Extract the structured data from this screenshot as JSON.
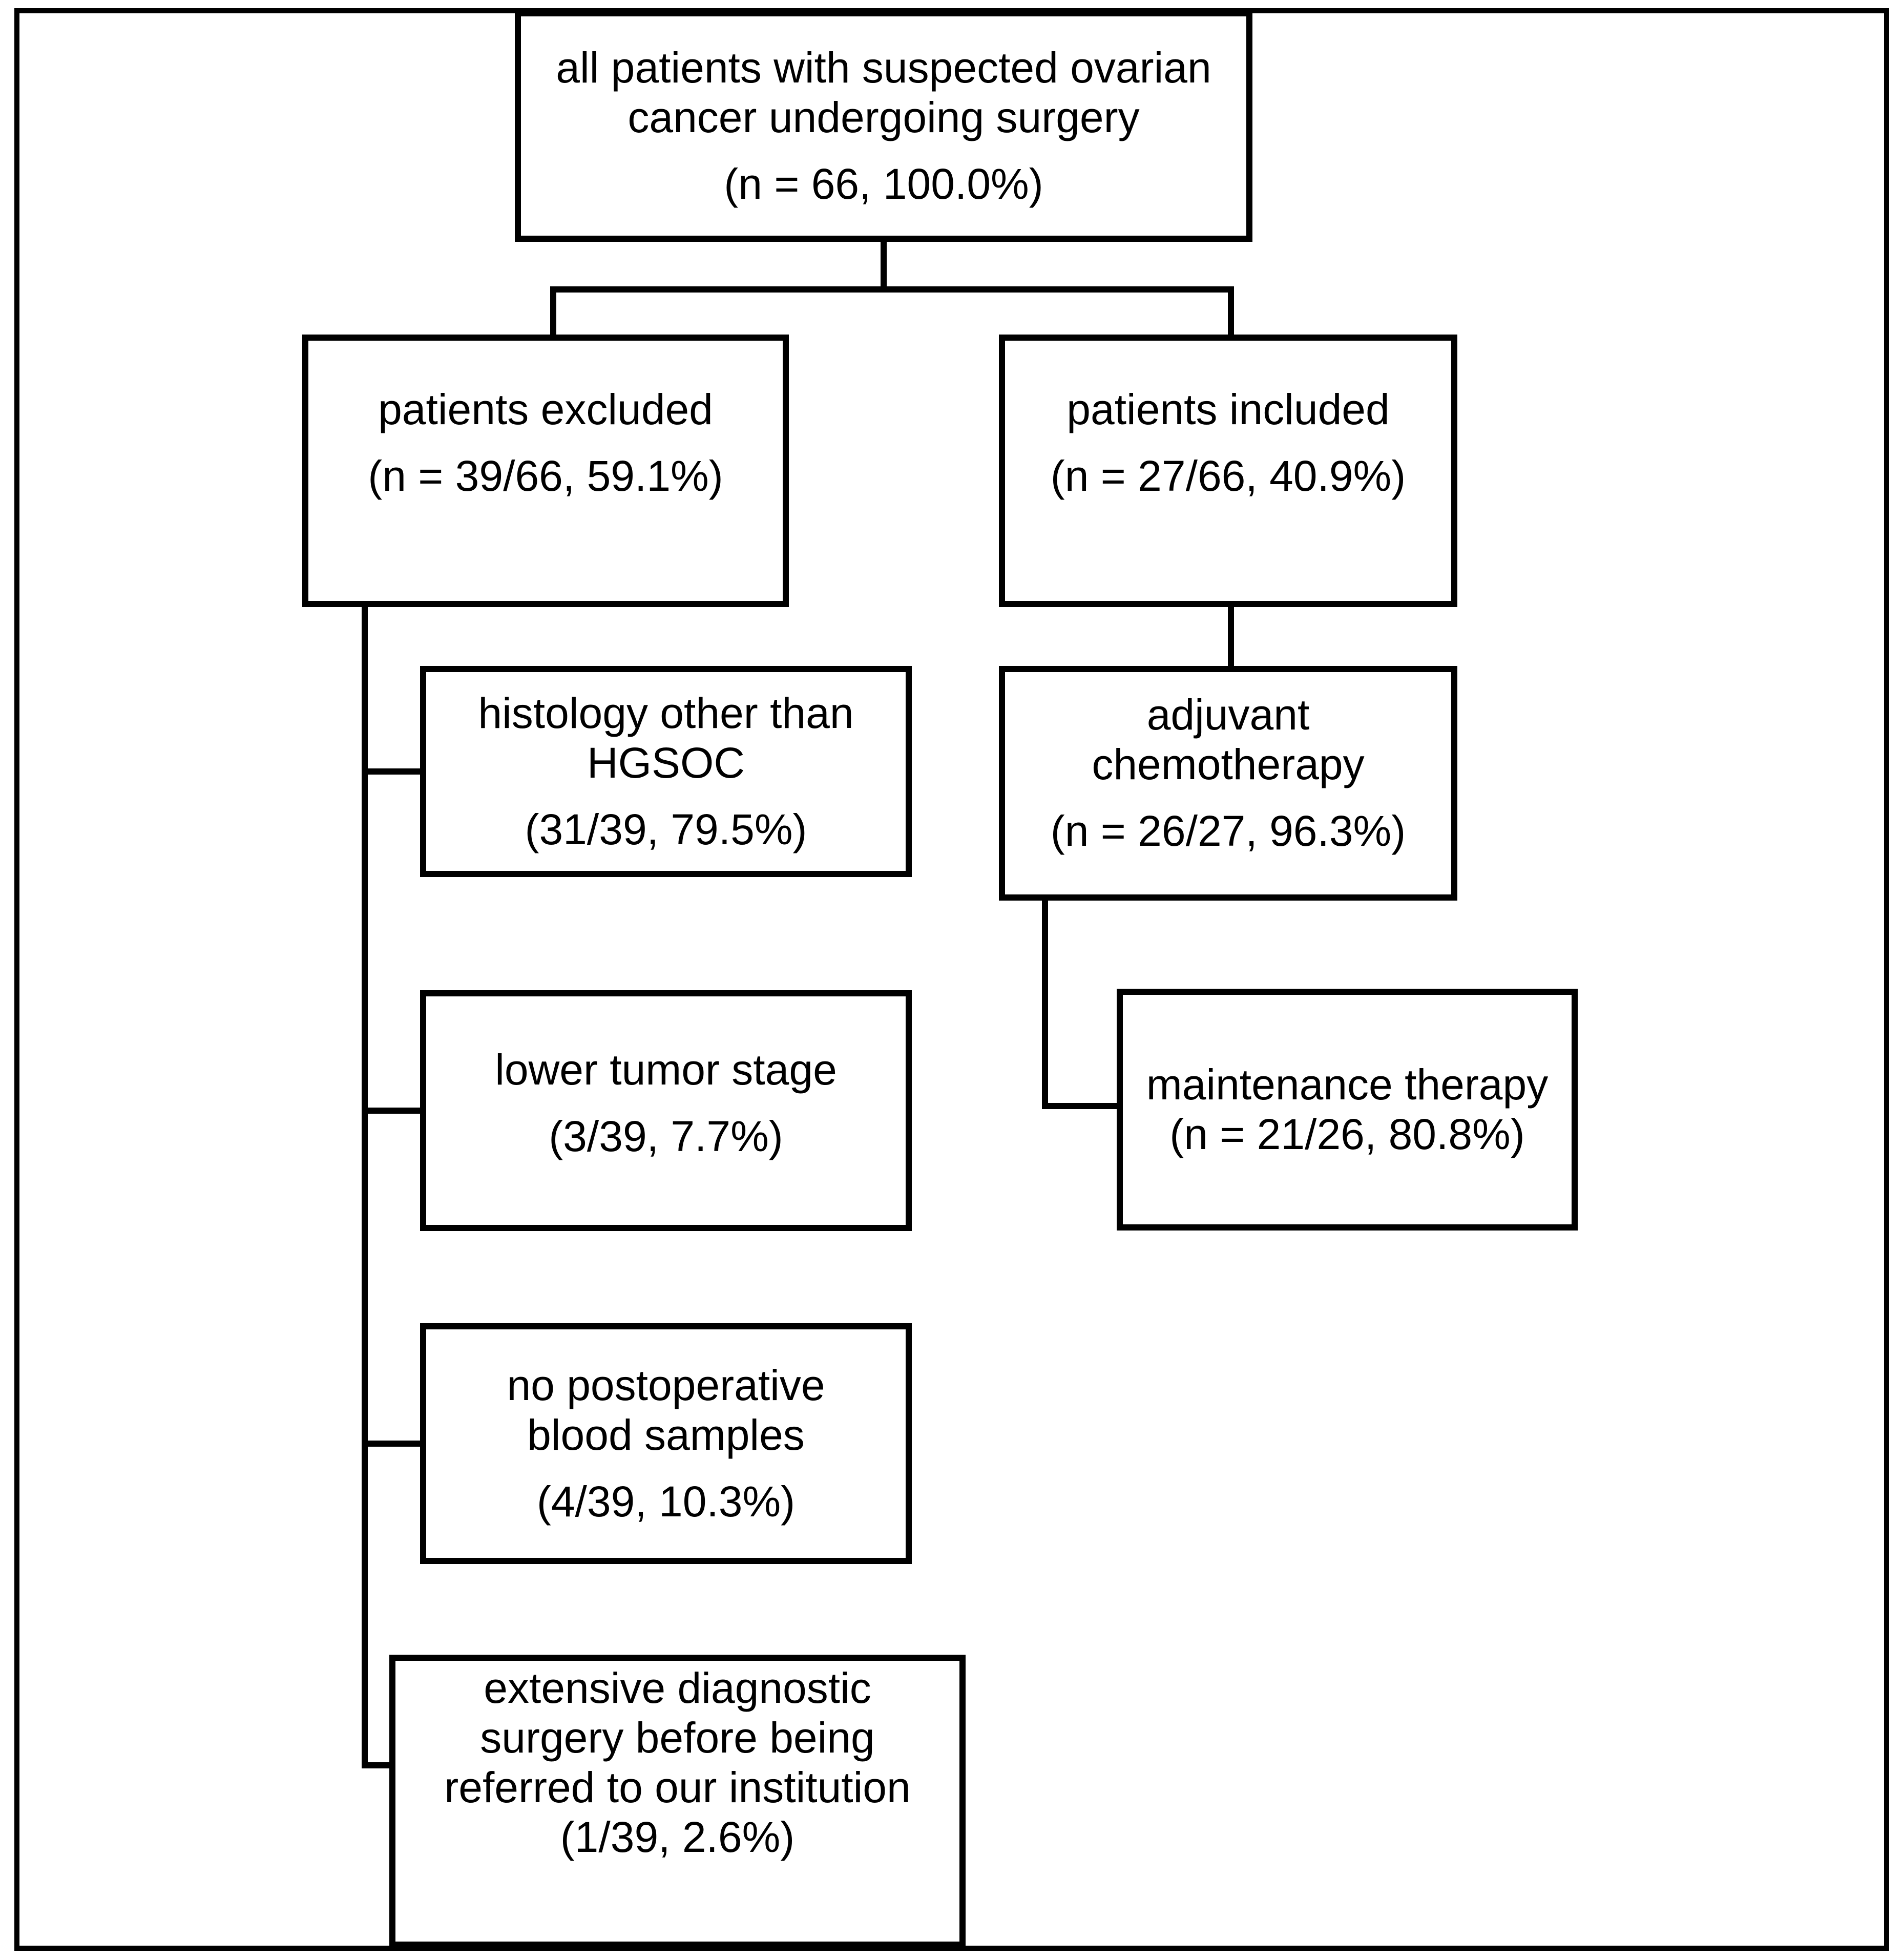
{
  "figure": {
    "kind": "patient-flow-diagram",
    "background_color": "#ffffff",
    "line_color": "#000000",
    "text_color": "#000000"
  },
  "nodes": {
    "root": {
      "lines": [
        "all patients with suspected ovarian",
        "cancer undergoing surgery"
      ],
      "count": "(n = 66, 100.0%)"
    },
    "excluded": {
      "lines": [
        "patients excluded"
      ],
      "count": "(n = 39/66, 59.1%)"
    },
    "included": {
      "lines": [
        "patients included"
      ],
      "count": "(n = 27/66, 40.9%)"
    },
    "histology": {
      "lines": [
        "histology other than",
        "HGSOC"
      ],
      "count": "(31/39, 79.5%)"
    },
    "lower_stage": {
      "lines": [
        "lower tumor stage"
      ],
      "count": "(3/39, 7.7%)"
    },
    "no_postop_blood": {
      "lines": [
        "no postoperative",
        "blood samples"
      ],
      "count": "(4/39, 10.3%)"
    },
    "extensive_surgery": {
      "lines": [
        "extensive diagnostic",
        "surgery before being",
        "referred to our institution"
      ],
      "count": "(1/39, 2.6%)"
    },
    "adjuvant": {
      "lines": [
        "adjuvant",
        "chemotherapy"
      ],
      "count": "(n = 26/27, 96.3%)"
    },
    "maintenance": {
      "lines": [
        "maintenance therapy"
      ],
      "count": "(n = 21/26, 80.8%)"
    }
  },
  "edges": [
    {
      "from": "root",
      "to": "excluded"
    },
    {
      "from": "root",
      "to": "included"
    },
    {
      "from": "excluded",
      "to": "histology"
    },
    {
      "from": "excluded",
      "to": "lower_stage"
    },
    {
      "from": "excluded",
      "to": "no_postop_blood"
    },
    {
      "from": "excluded",
      "to": "extensive_surgery"
    },
    {
      "from": "included",
      "to": "adjuvant"
    },
    {
      "from": "adjuvant",
      "to": "maintenance"
    }
  ]
}
